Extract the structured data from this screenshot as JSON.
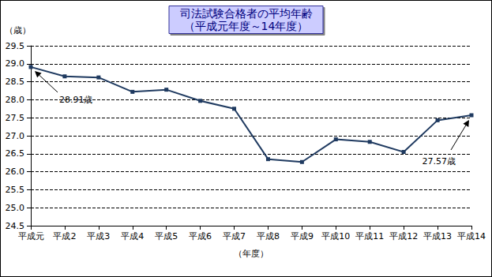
{
  "chart_data": {
    "type": "line",
    "title": "司法試験合格者の平均年齢",
    "subtitle": "（平成元年度～14年度）",
    "y_label": "（歳）",
    "x_label": "（年度）",
    "categories": [
      "平成元",
      "平成2",
      "平成3",
      "平成4",
      "平成5",
      "平成6",
      "平成7",
      "平成8",
      "平成9",
      "平成10",
      "平成11",
      "平成12",
      "平成13",
      "平成14"
    ],
    "values": [
      28.91,
      28.65,
      28.62,
      28.22,
      28.28,
      27.97,
      27.75,
      26.35,
      26.27,
      26.9,
      26.83,
      26.55,
      27.43,
      27.57
    ],
    "color": "#1f3a60",
    "marker": "square",
    "line_style": "solid",
    "ylim": [
      24.5,
      29.5
    ],
    "yticks": [
      24.5,
      {
        "value": 25,
        "label": "25.0"
      },
      25.5,
      {
        "value": 26,
        "label": "26.0"
      },
      26.5,
      {
        "value": 27,
        "label": "27.0"
      },
      27.5,
      {
        "value": 28,
        "label": "28.0"
      },
      28.5,
      {
        "value": 29,
        "label": "29.0"
      },
      29.5
    ],
    "grid": true,
    "annotations": [
      {
        "text": "28.91歳",
        "category": "平成元"
      },
      {
        "text": "27.57歳",
        "category": "平成14"
      }
    ]
  }
}
